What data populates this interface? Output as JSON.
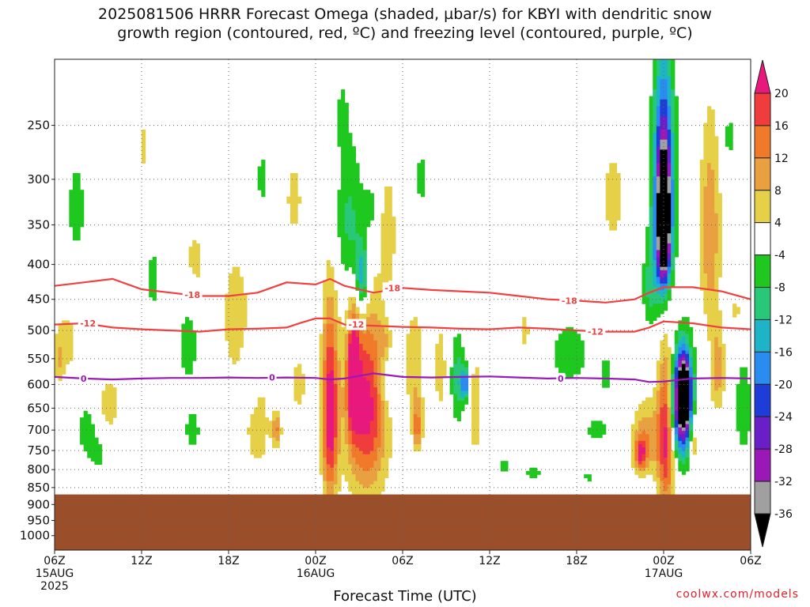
{
  "title_line1": "2025081506 HRRR Forecast Omega (shaded, µbar/s) for KBYI with dendritic snow",
  "title_line2": "growth region (contoured, red, ºC) and freezing level (contoured, purple, ºC)",
  "x_axis_title": "Forecast Time (UTC)",
  "credit": "coolwx.com/models",
  "colors": {
    "dsg_contour": "#f04040",
    "freezing_contour": "#9a18b8",
    "terrain": "#9a4e2a"
  },
  "chart_data": {
    "type": "heatmap",
    "title": "2025081506 HRRR Forecast Omega (shaded, µbar/s) for KBYI with dendritic snow growth region (contoured, red, ºC) and freezing level (contoured, purple, ºC)",
    "xlabel": "Forecast Time (UTC)",
    "ylabel": "",
    "x_range_hours": [
      0,
      48
    ],
    "y_range_hpa": [
      1050,
      200
    ],
    "y_scale": "log-pressure",
    "grid": true,
    "legend": "colorbar-right",
    "y_ticks": [
      250,
      300,
      350,
      400,
      450,
      500,
      550,
      600,
      650,
      700,
      750,
      800,
      850,
      900,
      950,
      1000
    ],
    "x_ticks": [
      {
        "h": 0,
        "label": "06Z",
        "date": "15AUG",
        "year": "2025"
      },
      {
        "h": 6,
        "label": "12Z"
      },
      {
        "h": 12,
        "label": "18Z"
      },
      {
        "h": 18,
        "label": "00Z",
        "date": "16AUG"
      },
      {
        "h": 24,
        "label": "06Z"
      },
      {
        "h": 30,
        "label": "12Z"
      },
      {
        "h": 36,
        "label": "18Z"
      },
      {
        "h": 42,
        "label": "00Z",
        "date": "17AUG"
      },
      {
        "h": 48,
        "label": "06Z"
      }
    ],
    "colorbar": {
      "labels": [
        "20",
        "16",
        "12",
        "8",
        "4",
        "-4",
        "-8",
        "-12",
        "-16",
        "-20",
        "-24",
        "-28",
        "-32",
        "-36"
      ],
      "bins": [
        {
          "min": 20,
          "max": 24,
          "color": "#e8187c"
        },
        {
          "min": 16,
          "max": 20,
          "color": "#f03c3c"
        },
        {
          "min": 12,
          "max": 16,
          "color": "#f07a2a"
        },
        {
          "min": 8,
          "max": 12,
          "color": "#e8a040"
        },
        {
          "min": 4,
          "max": 8,
          "color": "#e6d048"
        },
        {
          "min": -4,
          "max": 4,
          "color": "#ffffff"
        },
        {
          "min": -8,
          "max": -4,
          "color": "#1ec81e"
        },
        {
          "min": -12,
          "max": -8,
          "color": "#28c878"
        },
        {
          "min": -16,
          "max": -12,
          "color": "#1eb4c8"
        },
        {
          "min": -20,
          "max": -16,
          "color": "#2a8cf0"
        },
        {
          "min": -24,
          "max": -20,
          "color": "#1e3cd8"
        },
        {
          "min": -28,
          "max": -24,
          "color": "#6a1ec8"
        },
        {
          "min": -32,
          "max": -28,
          "color": "#9a18b8"
        },
        {
          "min": -36,
          "max": -32,
          "color": "#a0a0a0"
        },
        {
          "min": -40,
          "max": -36,
          "color": "#000000"
        }
      ]
    },
    "contours": [
      {
        "name": "-18",
        "color": "#f04040",
        "points": [
          [
            0,
            430
          ],
          [
            2,
            425
          ],
          [
            4,
            420
          ],
          [
            6,
            435
          ],
          [
            8,
            440
          ],
          [
            10,
            445
          ],
          [
            12,
            445
          ],
          [
            14,
            440
          ],
          [
            16,
            425
          ],
          [
            18,
            428
          ],
          [
            19,
            420
          ],
          [
            20,
            430
          ],
          [
            22,
            440
          ],
          [
            24,
            433
          ],
          [
            26,
            436
          ],
          [
            28,
            438
          ],
          [
            30,
            440
          ],
          [
            32,
            445
          ],
          [
            34,
            450
          ],
          [
            36,
            452
          ],
          [
            38,
            455
          ],
          [
            40,
            450
          ],
          [
            41,
            440
          ],
          [
            42,
            432
          ],
          [
            44,
            432
          ],
          [
            46,
            438
          ],
          [
            48,
            450
          ]
        ],
        "labels": [
          [
            9.5,
            443
          ],
          [
            23.3,
            433
          ],
          [
            35.5,
            452
          ]
        ]
      },
      {
        "name": "-12",
        "color": "#f04040",
        "points": [
          [
            0,
            490
          ],
          [
            2,
            488
          ],
          [
            4,
            495
          ],
          [
            6,
            498
          ],
          [
            8,
            500
          ],
          [
            10,
            502
          ],
          [
            12,
            498
          ],
          [
            14,
            497
          ],
          [
            16,
            495
          ],
          [
            17,
            487
          ],
          [
            18,
            480
          ],
          [
            19,
            480
          ],
          [
            20,
            490
          ],
          [
            22,
            492
          ],
          [
            24,
            494
          ],
          [
            26,
            495
          ],
          [
            28,
            497
          ],
          [
            30,
            498
          ],
          [
            32,
            495
          ],
          [
            34,
            497
          ],
          [
            36,
            500
          ],
          [
            38,
            502
          ],
          [
            40,
            502
          ],
          [
            41,
            495
          ],
          [
            42,
            485
          ],
          [
            44,
            488
          ],
          [
            46,
            495
          ],
          [
            48,
            498
          ]
        ],
        "labels": [
          [
            2.3,
            488
          ],
          [
            20.8,
            490
          ],
          [
            37.3,
            502
          ]
        ]
      },
      {
        "name": "0",
        "color": "#9a18b8",
        "points": [
          [
            0,
            585
          ],
          [
            2,
            588
          ],
          [
            4,
            590
          ],
          [
            6,
            588
          ],
          [
            8,
            587
          ],
          [
            10,
            587
          ],
          [
            12,
            586
          ],
          [
            14,
            587
          ],
          [
            16,
            586
          ],
          [
            18,
            587
          ],
          [
            19,
            590
          ],
          [
            20,
            588
          ],
          [
            22,
            578
          ],
          [
            24,
            585
          ],
          [
            26,
            586
          ],
          [
            28,
            585
          ],
          [
            30,
            584
          ],
          [
            32,
            586
          ],
          [
            34,
            588
          ],
          [
            36,
            587
          ],
          [
            38,
            588
          ],
          [
            40,
            590
          ],
          [
            41,
            595
          ],
          [
            42,
            594
          ],
          [
            44,
            588
          ],
          [
            46,
            587
          ],
          [
            48,
            588
          ]
        ],
        "labels": [
          [
            2.0,
            588
          ],
          [
            15.0,
            586
          ],
          [
            34.9,
            588
          ]
        ]
      }
    ],
    "surface_hpa": 870,
    "omega_regions": [
      {
        "label": "weak upward, early ~07Z-09Z 270-420 hPa",
        "value": -6
      },
      {
        "label": "ascent core ~01Z-04Z 16AUG 300-450 hPa",
        "value": -16
      },
      {
        "label": "strong descent ~22Z-04Z 15-16AUG 480-850 hPa",
        "value": 22
      },
      {
        "label": "strong ascent core ~00Z-01Z 17AUG 300-420 hPa",
        "value": -40
      },
      {
        "label": "strong descent ~23Z-01Z 16-17AUG 480-860 hPa",
        "value": 22
      },
      {
        "label": "strong ascent ~01Z-02Z 17AUG 550-800 hPa",
        "value": -40
      }
    ]
  }
}
